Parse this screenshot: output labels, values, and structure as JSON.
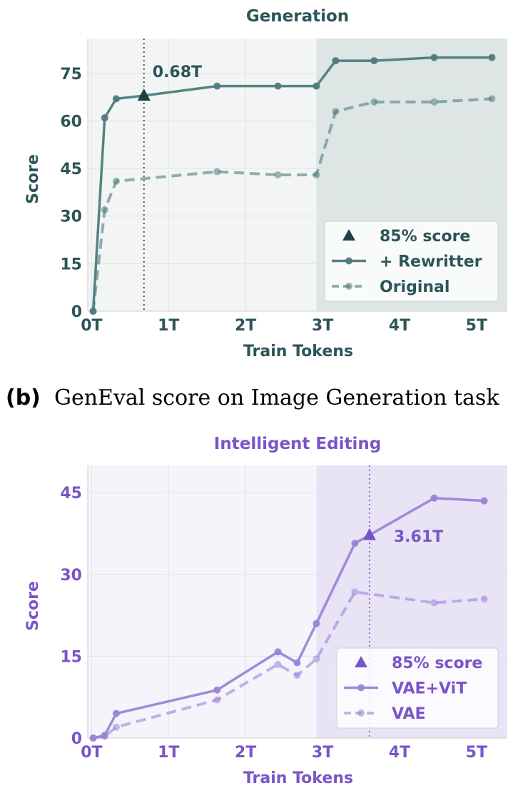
{
  "caption": {
    "label": "(b)",
    "text": "GenEval score on Image Generation task"
  },
  "colors": {
    "gen_primary": "#4f7b7d",
    "gen_dark": "#1f3f43",
    "gen_text": "#2d5558",
    "gen_bg": "#f2f5f4",
    "gen_shade": "#dde5e5",
    "edit_primary": "#9a85d6",
    "edit_dark": "#7755c8",
    "edit_text": "#7a55c8",
    "edit_bg": "#f6f4fb",
    "edit_shade": "#e9e3f6"
  },
  "chart_data": [
    {
      "type": "line",
      "title": "Generation",
      "xlabel": "Train Tokens",
      "ylabel": "Score",
      "xlim": [
        -0.05,
        5.4
      ],
      "ylim": [
        0,
        86
      ],
      "xticks": [
        0,
        1,
        2,
        3,
        4,
        5
      ],
      "xtick_labels": [
        "0T",
        "1T",
        "2T",
        "3T",
        "4T",
        "5T"
      ],
      "yticks": [
        0,
        15,
        30,
        45,
        60,
        75
      ],
      "ytick_labels": [
        "0",
        "15",
        "30",
        "45",
        "60",
        "75"
      ],
      "shaded_region": [
        2.92,
        5.4
      ],
      "grid": true,
      "legend_position": "lower-right",
      "series": [
        {
          "name": "+ Rewritter",
          "style": "solid",
          "x": [
            0.02,
            0.17,
            0.32,
            0.68,
            1.63,
            2.42,
            2.92,
            3.17,
            3.67,
            4.45,
            5.2
          ],
          "y": [
            0,
            61,
            67,
            68,
            71,
            71,
            71,
            79,
            79,
            80,
            80
          ]
        },
        {
          "name": "Original",
          "style": "dashed",
          "x": [
            0.02,
            0.17,
            0.32,
            1.63,
            2.42,
            2.92,
            3.17,
            3.67,
            4.45,
            5.2
          ],
          "y": [
            0,
            32,
            41,
            44,
            43,
            43,
            63,
            66,
            66,
            67
          ]
        }
      ],
      "marker_85": {
        "name": "85% score",
        "x": 0.68,
        "y": 68,
        "label": "0.68T"
      }
    },
    {
      "type": "line",
      "title": "Intelligent Editing",
      "xlabel": "Train Tokens",
      "ylabel": "Score",
      "xlim": [
        -0.05,
        5.4
      ],
      "ylim": [
        0,
        50
      ],
      "xticks": [
        0,
        1,
        2,
        3,
        4,
        5
      ],
      "xtick_labels": [
        "0T",
        "1T",
        "2T",
        "3T",
        "4T",
        "5T"
      ],
      "yticks": [
        0,
        15,
        30,
        45
      ],
      "ytick_labels": [
        "0",
        "15",
        "30",
        "45"
      ],
      "shaded_region": [
        2.92,
        5.4
      ],
      "grid": true,
      "legend_position": "lower-right",
      "series": [
        {
          "name": "VAE+ViT",
          "style": "solid",
          "x": [
            0.02,
            0.17,
            0.32,
            1.63,
            2.42,
            2.67,
            2.92,
            3.42,
            4.45,
            5.1
          ],
          "y": [
            0,
            0.5,
            4.5,
            8.8,
            15.8,
            13.8,
            21,
            35.7,
            44,
            43.5
          ]
        },
        {
          "name": "VAE",
          "style": "dashed",
          "x": [
            0.02,
            0.17,
            0.32,
            1.63,
            2.42,
            2.67,
            2.92,
            3.42,
            4.45,
            5.1
          ],
          "y": [
            0,
            0.3,
            2,
            7,
            13.5,
            11.5,
            14.5,
            26.8,
            24.8,
            25.5
          ]
        }
      ],
      "marker_85": {
        "name": "85% score",
        "x": 3.61,
        "y": 37.2,
        "label": "3.61T"
      }
    }
  ]
}
